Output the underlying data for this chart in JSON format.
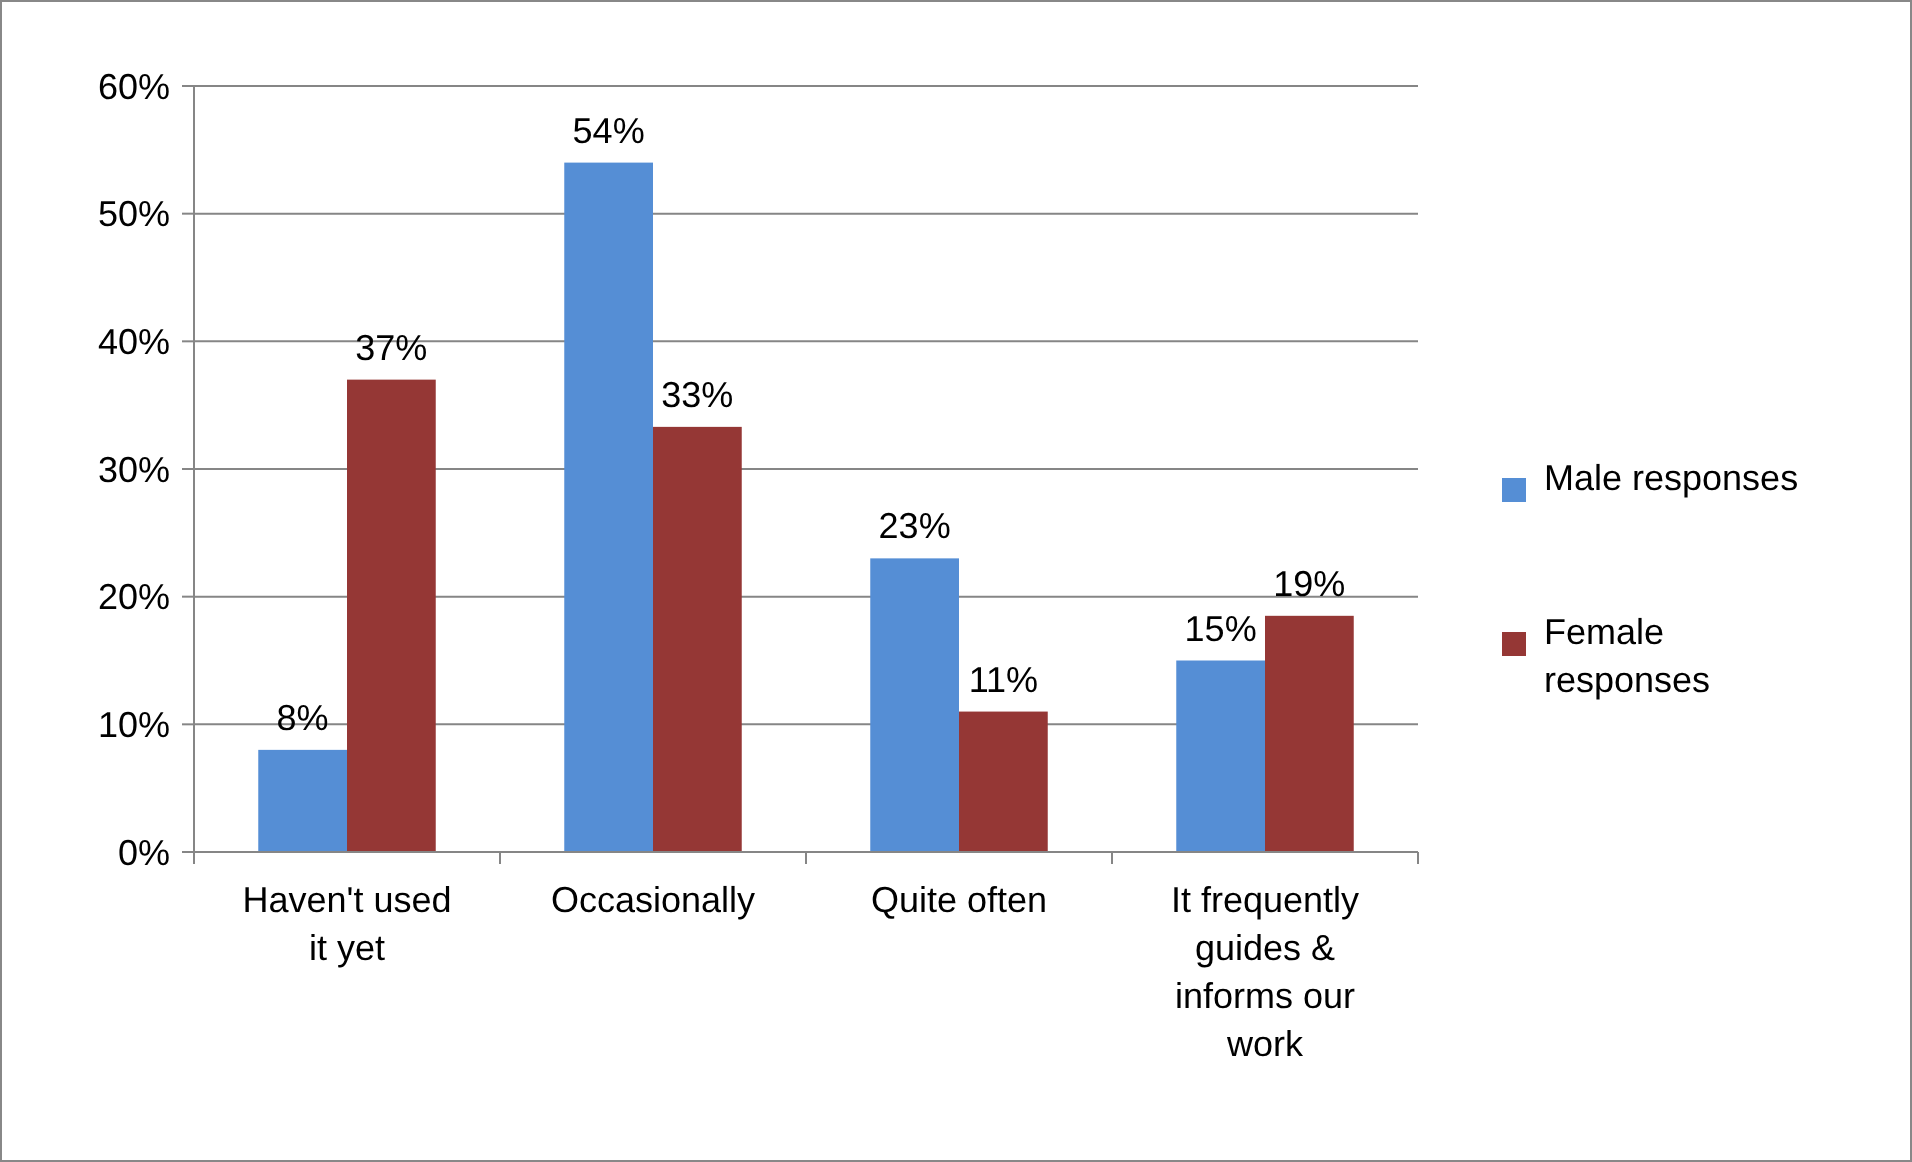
{
  "chart_data": {
    "type": "bar",
    "categories": [
      "Haven't used it yet",
      "Occasionally",
      "Quite often",
      "It frequently guides & informs our work"
    ],
    "series": [
      {
        "name": "Male responses",
        "color": "#558ed5",
        "values": [
          8,
          54,
          23,
          15
        ],
        "value_labels": [
          "8%",
          "54%",
          "23%",
          "15%"
        ]
      },
      {
        "name": "Female responses",
        "color": "#953735",
        "values": [
          37,
          33.3,
          11,
          18.5
        ],
        "value_labels": [
          "37%",
          "33%",
          "11%",
          "19%"
        ]
      }
    ],
    "ylim": [
      0,
      60
    ],
    "yticks": [
      {
        "value": 0,
        "label": "0%"
      },
      {
        "value": 10,
        "label": "10%"
      },
      {
        "value": 20,
        "label": "20%"
      },
      {
        "value": 30,
        "label": "30%"
      },
      {
        "value": 40,
        "label": "40%"
      },
      {
        "value": 50,
        "label": "50%"
      },
      {
        "value": 60,
        "label": "60%"
      }
    ],
    "grid": "y",
    "legend": "right"
  }
}
